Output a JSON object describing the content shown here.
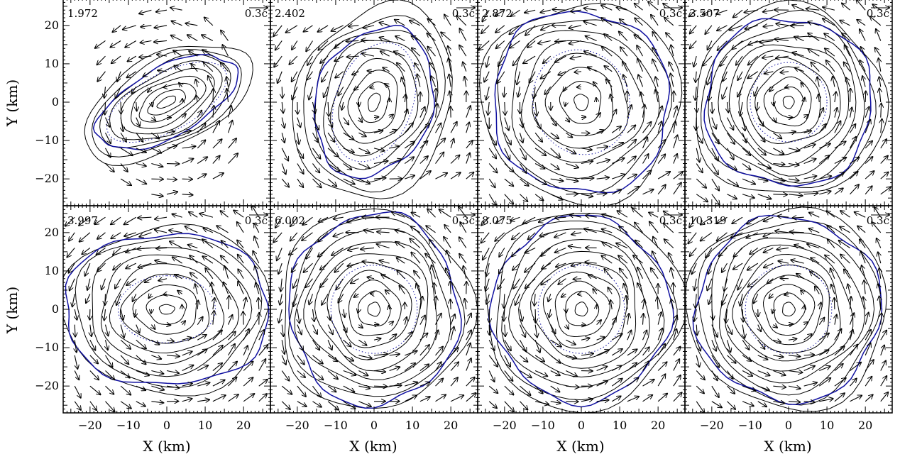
{
  "chart_data": {
    "type": "contour",
    "xlabel": "X (km)",
    "ylabel": "Y (km)",
    "xlim": [
      -27,
      27
    ],
    "ylim": [
      -27,
      27
    ],
    "xticks": [
      -20,
      -10,
      0,
      10,
      20
    ],
    "yticks": [
      -20,
      -10,
      0,
      10,
      20
    ],
    "velocity_scale_label": "0.3c",
    "colors": {
      "contour": "#000000",
      "blue_contour": "#1010a0",
      "dotted_contour": "#1010a0",
      "arrow": "#000000"
    },
    "panels": [
      {
        "time": "1.972",
        "shape": "bar",
        "angle_deg": 118,
        "ax": 6,
        "ay": 15,
        "outer_ax": 12,
        "outer_ay": 24,
        "blue_r": [
          9,
          20
        ],
        "levels": 9
      },
      {
        "time": "2.402",
        "shape": "ellipse",
        "angle_deg": 160,
        "ax": 8,
        "ay": 14,
        "outer_ax": 20,
        "outer_ay": 26,
        "blue_r": [
          15,
          20
        ],
        "levels": 9
      },
      {
        "time": "2.872",
        "shape": "ellipse",
        "angle_deg": 20,
        "ax": 10,
        "ay": 12,
        "outer_ax": 26,
        "outer_ay": 26,
        "blue_r": [
          23,
          24
        ],
        "levels": 8
      },
      {
        "time": "3.507",
        "shape": "round",
        "angle_deg": 0,
        "ax": 8,
        "ay": 9,
        "outer_ax": 25,
        "outer_ay": 25,
        "blue_r": [
          22,
          22
        ],
        "levels": 11
      },
      {
        "time": "3.997",
        "shape": "ellipse",
        "angle_deg": 90,
        "ax": 7,
        "ay": 11,
        "outer_ax": 22,
        "outer_ay": 27,
        "blue_r": [
          20,
          27
        ],
        "levels": 9
      },
      {
        "time": "6.002",
        "shape": "round",
        "angle_deg": 0,
        "ax": 9,
        "ay": 10,
        "outer_ax": 25,
        "outer_ay": 26,
        "blue_r": [
          22,
          25
        ],
        "levels": 10
      },
      {
        "time": "8.075",
        "shape": "round",
        "angle_deg": 0,
        "ax": 9,
        "ay": 10,
        "outer_ax": 26,
        "outer_ay": 26,
        "blue_r": [
          23,
          24
        ],
        "levels": 10
      },
      {
        "time": "10.319",
        "shape": "round",
        "angle_deg": 0,
        "ax": 9,
        "ay": 10,
        "outer_ax": 26,
        "outer_ay": 26,
        "blue_r": [
          24,
          24
        ],
        "levels": 11
      }
    ]
  }
}
